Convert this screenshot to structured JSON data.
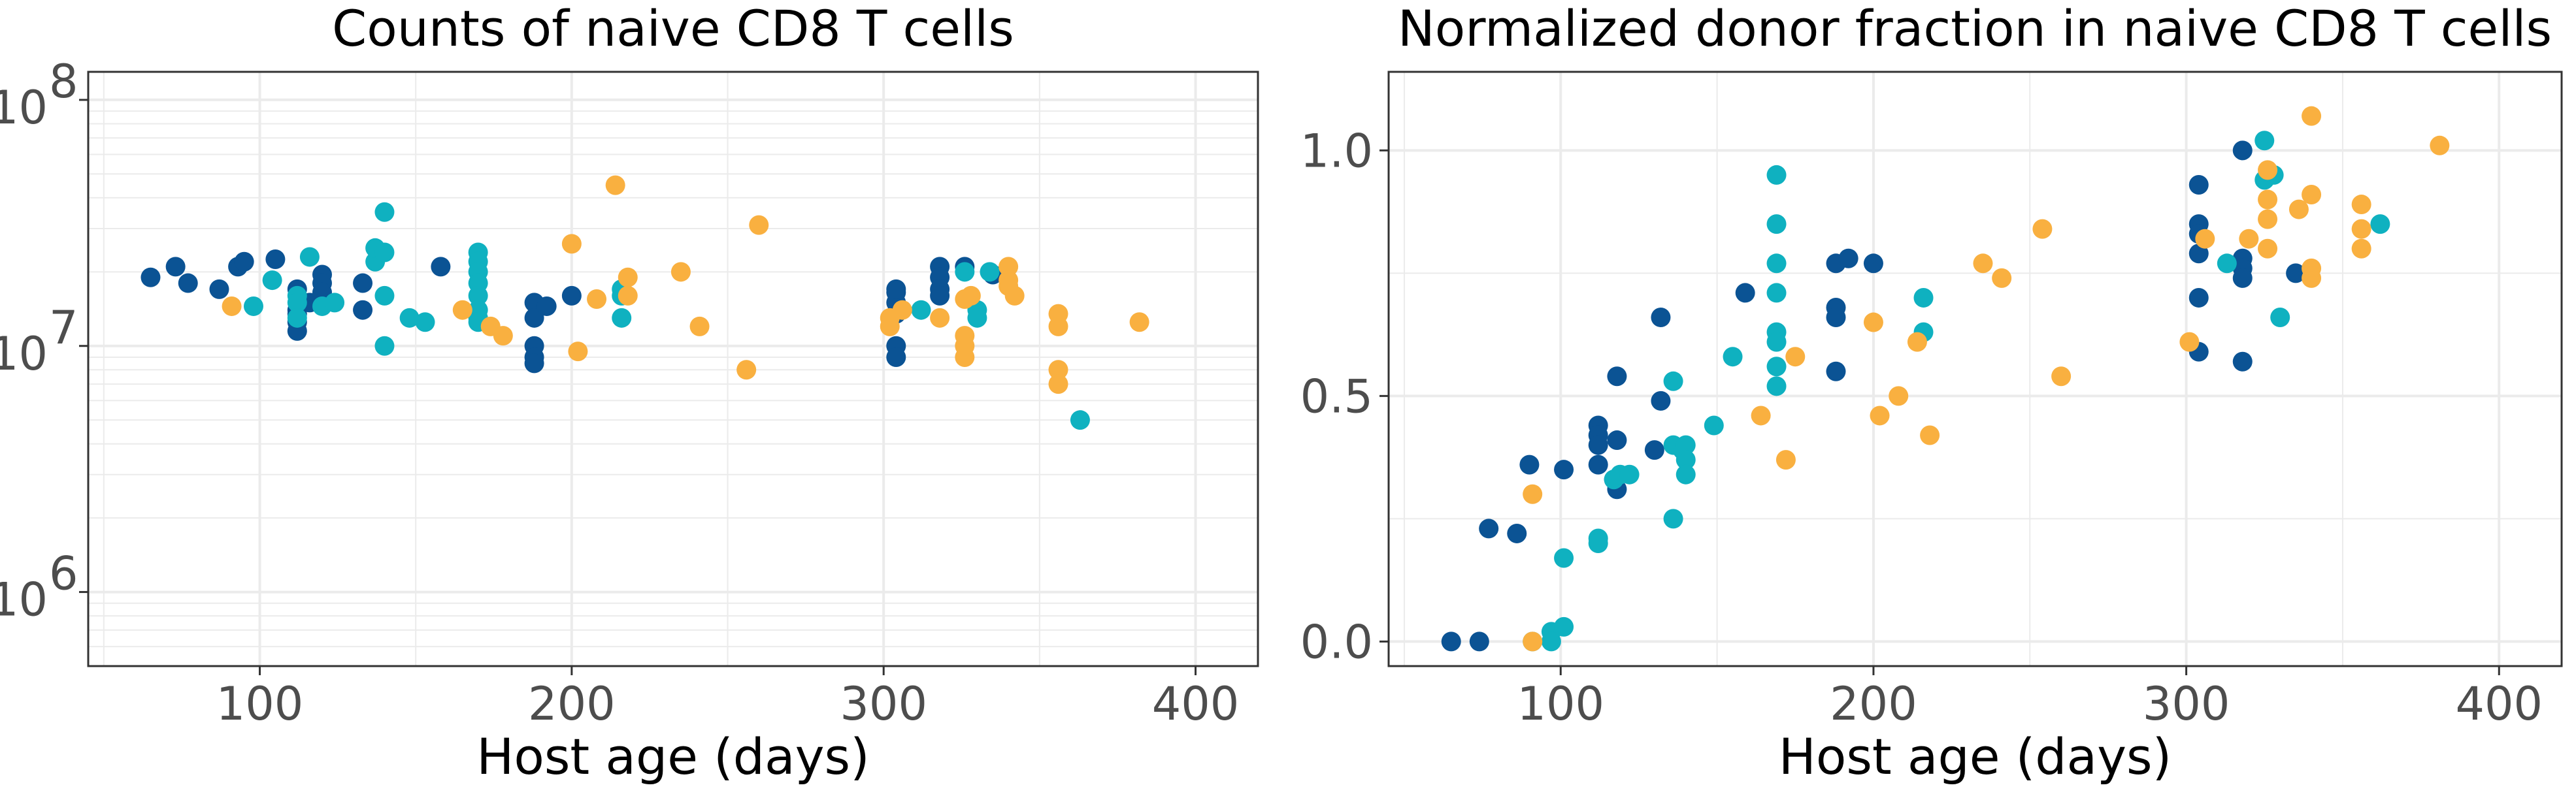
{
  "chart_data": [
    {
      "type": "scatter",
      "title": "Counts of naive CD8 T cells",
      "xlabel": "Host age (days)",
      "ylabel": "",
      "xlim": [
        45,
        420
      ],
      "ylim": [
        500000,
        130000000
      ],
      "yscale": "log",
      "xticks": [
        100,
        200,
        300,
        400
      ],
      "yticks": [
        {
          "value": 1000000,
          "base": "10",
          "exp": "6"
        },
        {
          "value": 10000000,
          "base": "10",
          "exp": "7"
        },
        {
          "value": 100000000,
          "base": "10",
          "exp": "8"
        }
      ],
      "grid": true,
      "legend": "none",
      "series": [
        {
          "color": "#0b5394",
          "points": [
            [
              65,
              19000000
            ],
            [
              73,
              21000000
            ],
            [
              77,
              18000000
            ],
            [
              87,
              17000000
            ],
            [
              93,
              21000000
            ],
            [
              95,
              22000000
            ],
            [
              105,
              22500000
            ],
            [
              112,
              17000000
            ],
            [
              112,
              14000000
            ],
            [
              112,
              13500000
            ],
            [
              112,
              12500000
            ],
            [
              112,
              11500000
            ],
            [
              116,
              15000000
            ],
            [
              120,
              19500000
            ],
            [
              120,
              18000000
            ],
            [
              120,
              16500000
            ],
            [
              120,
              15000000
            ],
            [
              133,
              14000000
            ],
            [
              133,
              18000000
            ],
            [
              158,
              21000000
            ],
            [
              188,
              15000000
            ],
            [
              188,
              13000000
            ],
            [
              188,
              10000000
            ],
            [
              188,
              9000000
            ],
            [
              188,
              8500000
            ],
            [
              192,
              14500000
            ],
            [
              200,
              16000000
            ],
            [
              304,
              16500000
            ],
            [
              304,
              15000000
            ],
            [
              304,
              13500000
            ],
            [
              304,
              10000000
            ],
            [
              304,
              9000000
            ],
            [
              304,
              17000000
            ],
            [
              318,
              21000000
            ],
            [
              318,
              19000000
            ],
            [
              318,
              17000000
            ],
            [
              318,
              16000000
            ],
            [
              326,
              21000000
            ],
            [
              335,
              19500000
            ]
          ]
        },
        {
          "color": "#0fb1c0",
          "points": [
            [
              98,
              14500000
            ],
            [
              104,
              18500000
            ],
            [
              112,
              16000000
            ],
            [
              112,
              15000000
            ],
            [
              112,
              13000000
            ],
            [
              116,
              23000000
            ],
            [
              120,
              14500000
            ],
            [
              124,
              15000000
            ],
            [
              137,
              22000000
            ],
            [
              137,
              25000000
            ],
            [
              140,
              35000000
            ],
            [
              140,
              24000000
            ],
            [
              140,
              16000000
            ],
            [
              140,
              10000000
            ],
            [
              148,
              13000000
            ],
            [
              153,
              12500000
            ],
            [
              170,
              24000000
            ],
            [
              170,
              22000000
            ],
            [
              170,
              20000000
            ],
            [
              170,
              18000000
            ],
            [
              170,
              16000000
            ],
            [
              170,
              14000000
            ],
            [
              170,
              13000000
            ],
            [
              170,
              12500000
            ],
            [
              216,
              17000000
            ],
            [
              216,
              16000000
            ],
            [
              216,
              13000000
            ],
            [
              312,
              14000000
            ],
            [
              326,
              20000000
            ],
            [
              330,
              14000000
            ],
            [
              330,
              13000000
            ],
            [
              334,
              20000000
            ]
          ]
        },
        {
          "color": "#f9b040",
          "points": [
            [
              91,
              14500000
            ],
            [
              165,
              14000000
            ],
            [
              174,
              12000000
            ],
            [
              178,
              11000000
            ],
            [
              200,
              26000000
            ],
            [
              202,
              9500000
            ],
            [
              208,
              15500000
            ],
            [
              214,
              45000000
            ],
            [
              218,
              19000000
            ],
            [
              218,
              16000000
            ],
            [
              235,
              20000000
            ],
            [
              241,
              12000000
            ],
            [
              256,
              8000000
            ],
            [
              260,
              31000000
            ],
            [
              302,
              13000000
            ],
            [
              302,
              12000000
            ],
            [
              306,
              14000000
            ],
            [
              318,
              13000000
            ],
            [
              326,
              15500000
            ],
            [
              326,
              11000000
            ],
            [
              326,
              10000000
            ],
            [
              326,
              9000000
            ],
            [
              328,
              16000000
            ],
            [
              340,
              21000000
            ],
            [
              340,
              18500000
            ],
            [
              340,
              17500000
            ],
            [
              342,
              16000000
            ],
            [
              356,
              13500000
            ],
            [
              356,
              12000000
            ],
            [
              356,
              8000000
            ],
            [
              356,
              7000000
            ],
            [
              382,
              12500000
            ]
          ]
        },
        {
          "color": "#0fb1c0",
          "points": [
            [
              363,
              5000000
            ]
          ]
        }
      ]
    },
    {
      "type": "scatter",
      "title": "Normalized donor fraction in naive CD8 T cells",
      "xlabel": "Host age (days)",
      "ylabel": "",
      "xlim": [
        45,
        420
      ],
      "ylim": [
        -0.05,
        1.16
      ],
      "yscale": "linear",
      "xticks": [
        100,
        200,
        300,
        400
      ],
      "yticks": [
        {
          "value": 0.0,
          "label": "0.0"
        },
        {
          "value": 0.5,
          "label": "0.5"
        },
        {
          "value": 1.0,
          "label": "1.0"
        }
      ],
      "grid": true,
      "legend": "none",
      "series": [
        {
          "color": "#0b5394",
          "points": [
            [
              65,
              0.0
            ],
            [
              74,
              0.0
            ],
            [
              77,
              0.23
            ],
            [
              86,
              0.22
            ],
            [
              90,
              0.36
            ],
            [
              101,
              0.35
            ],
            [
              112,
              0.44
            ],
            [
              112,
              0.42
            ],
            [
              112,
              0.4
            ],
            [
              112,
              0.36
            ],
            [
              117,
              0.33
            ],
            [
              118,
              0.54
            ],
            [
              118,
              0.41
            ],
            [
              118,
              0.31
            ],
            [
              132,
              0.66
            ],
            [
              132,
              0.49
            ],
            [
              159,
              0.71
            ],
            [
              188,
              0.77
            ],
            [
              188,
              0.68
            ],
            [
              188,
              0.66
            ],
            [
              188,
              0.55
            ],
            [
              192,
              0.78
            ],
            [
              200,
              0.77
            ],
            [
              304,
              0.93
            ],
            [
              304,
              0.85
            ],
            [
              304,
              0.83
            ],
            [
              304,
              0.79
            ],
            [
              304,
              0.7
            ],
            [
              304,
              0.59
            ],
            [
              318,
              1.0
            ],
            [
              318,
              0.78
            ],
            [
              318,
              0.76
            ],
            [
              318,
              0.74
            ],
            [
              318,
              0.57
            ],
            [
              335,
              0.75
            ],
            [
              130,
              0.39
            ]
          ]
        },
        {
          "color": "#0fb1c0",
          "points": [
            [
              91,
              0.0
            ],
            [
              97,
              0.02
            ],
            [
              97,
              0.0
            ],
            [
              101,
              0.03
            ],
            [
              101,
              0.17
            ],
            [
              112,
              0.21
            ],
            [
              112,
              0.2
            ],
            [
              117,
              0.33
            ],
            [
              119,
              0.34
            ],
            [
              122,
              0.34
            ],
            [
              136,
              0.53
            ],
            [
              136,
              0.4
            ],
            [
              136,
              0.25
            ],
            [
              139,
              0.39
            ],
            [
              140,
              0.4
            ],
            [
              140,
              0.37
            ],
            [
              140,
              0.34
            ],
            [
              149,
              0.44
            ],
            [
              155,
              0.58
            ],
            [
              169,
              0.95
            ],
            [
              169,
              0.85
            ],
            [
              169,
              0.77
            ],
            [
              169,
              0.71
            ],
            [
              169,
              0.63
            ],
            [
              169,
              0.61
            ],
            [
              169,
              0.56
            ],
            [
              169,
              0.52
            ],
            [
              216,
              0.7
            ],
            [
              216,
              0.63
            ],
            [
              313,
              0.77
            ],
            [
              325,
              1.02
            ],
            [
              325,
              0.94
            ],
            [
              328,
              0.95
            ],
            [
              330,
              0.66
            ],
            [
              362,
              0.85
            ]
          ]
        },
        {
          "color": "#f9b040",
          "points": [
            [
              91,
              0.3
            ],
            [
              91,
              0.0
            ],
            [
              164,
              0.46
            ],
            [
              172,
              0.37
            ],
            [
              175,
              0.58
            ],
            [
              200,
              0.65
            ],
            [
              202,
              0.46
            ],
            [
              208,
              0.5
            ],
            [
              214,
              0.61
            ],
            [
              218,
              0.42
            ],
            [
              235,
              0.77
            ],
            [
              241,
              0.74
            ],
            [
              254,
              0.84
            ],
            [
              260,
              0.54
            ],
            [
              301,
              0.61
            ],
            [
              306,
              0.82
            ],
            [
              320,
              0.82
            ],
            [
              326,
              0.96
            ],
            [
              326,
              0.9
            ],
            [
              326,
              0.86
            ],
            [
              326,
              0.8
            ],
            [
              336,
              0.88
            ],
            [
              340,
              1.07
            ],
            [
              340,
              0.91
            ],
            [
              340,
              0.76
            ],
            [
              340,
              0.74
            ],
            [
              356,
              0.89
            ],
            [
              356,
              0.84
            ],
            [
              356,
              0.8
            ],
            [
              381,
              1.01
            ]
          ]
        }
      ]
    }
  ]
}
